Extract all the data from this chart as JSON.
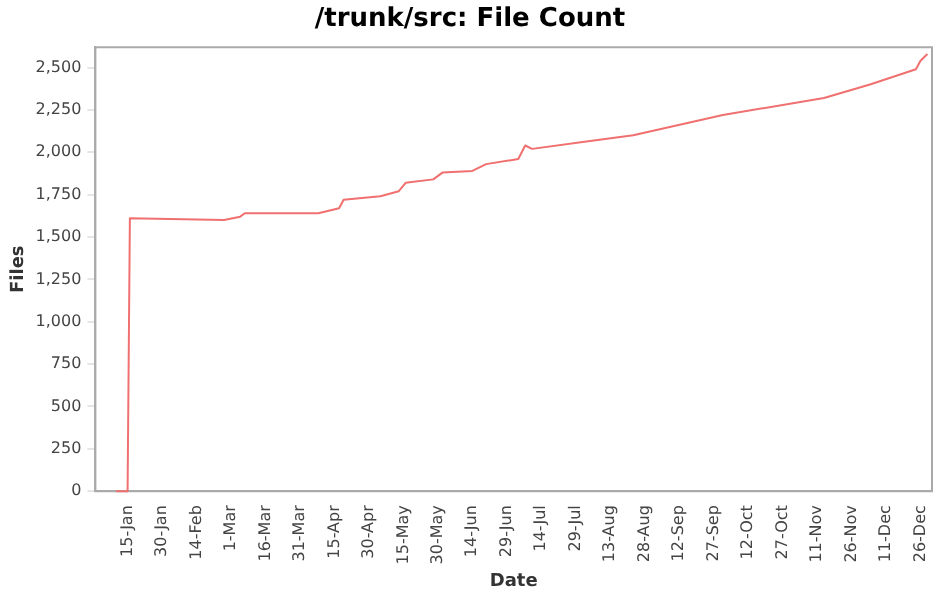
{
  "chart_data": {
    "type": "line",
    "title": "/trunk/src: File Count",
    "xlabel": "Date",
    "ylabel": "Files",
    "x": [
      "--01-10",
      "--01-15",
      "--01-16",
      "--02-26",
      "--03-05",
      "--03-07",
      "--04-08",
      "--04-17",
      "--04-19",
      "--05-05",
      "--05-13",
      "--05-16",
      "--05-28",
      "--06-01",
      "--06-14",
      "--06-20",
      "--07-04",
      "--07-07",
      "--07-10",
      "--08-01",
      "--08-23",
      "--10-01",
      "--11-14",
      "--12-04",
      "--12-24",
      "--12-26",
      "--12-29"
    ],
    "series": [
      {
        "color": "#f07070",
        "values": [
          0,
          0,
          1610,
          1600,
          1620,
          1640,
          1640,
          1670,
          1720,
          1740,
          1770,
          1820,
          1840,
          1880,
          1890,
          1930,
          1960,
          2040,
          2020,
          2060,
          2100,
          2220,
          2320,
          2400,
          2490,
          2540,
          2580
        ]
      }
    ],
    "xlim": [
      "--01-01",
      "--12-31"
    ],
    "xticks": [
      {
        "value": "--01-15",
        "label": "15-Jan"
      },
      {
        "value": "--01-30",
        "label": "30-Jan"
      },
      {
        "value": "--02-14",
        "label": "14-Feb"
      },
      {
        "value": "--03-01",
        "label": "1-Mar"
      },
      {
        "value": "--03-16",
        "label": "16-Mar"
      },
      {
        "value": "--03-31",
        "label": "31-Mar"
      },
      {
        "value": "--04-15",
        "label": "15-Apr"
      },
      {
        "value": "--04-30",
        "label": "30-Apr"
      },
      {
        "value": "--05-15",
        "label": "15-May"
      },
      {
        "value": "--05-30",
        "label": "30-May"
      },
      {
        "value": "--06-14",
        "label": "14-Jun"
      },
      {
        "value": "--06-29",
        "label": "29-Jun"
      },
      {
        "value": "--07-14",
        "label": "14-Jul"
      },
      {
        "value": "--07-29",
        "label": "29-Jul"
      },
      {
        "value": "--08-13",
        "label": "13-Aug"
      },
      {
        "value": "--08-28",
        "label": "28-Aug"
      },
      {
        "value": "--09-12",
        "label": "12-Sep"
      },
      {
        "value": "--09-27",
        "label": "27-Sep"
      },
      {
        "value": "--10-12",
        "label": "12-Oct"
      },
      {
        "value": "--10-27",
        "label": "27-Oct"
      },
      {
        "value": "--11-11",
        "label": "11-Nov"
      },
      {
        "value": "--11-26",
        "label": "26-Nov"
      },
      {
        "value": "--12-11",
        "label": "11-Dec"
      },
      {
        "value": "--12-26",
        "label": "26-Dec"
      }
    ],
    "ylim": [
      0,
      2620
    ],
    "yticks": [
      0,
      250,
      500,
      750,
      {
        "value": 1000,
        "label": "1,000"
      },
      {
        "value": 1250,
        "label": "1,250"
      },
      {
        "value": 1500,
        "label": "1,500"
      },
      {
        "value": 1750,
        "label": "1,750"
      },
      {
        "value": 2000,
        "label": "2,000"
      },
      {
        "value": 2250,
        "label": "2,250"
      },
      {
        "value": 2500,
        "label": "2,500"
      }
    ],
    "grid": false,
    "legend": false,
    "marker": "none",
    "line_style": "solid"
  }
}
